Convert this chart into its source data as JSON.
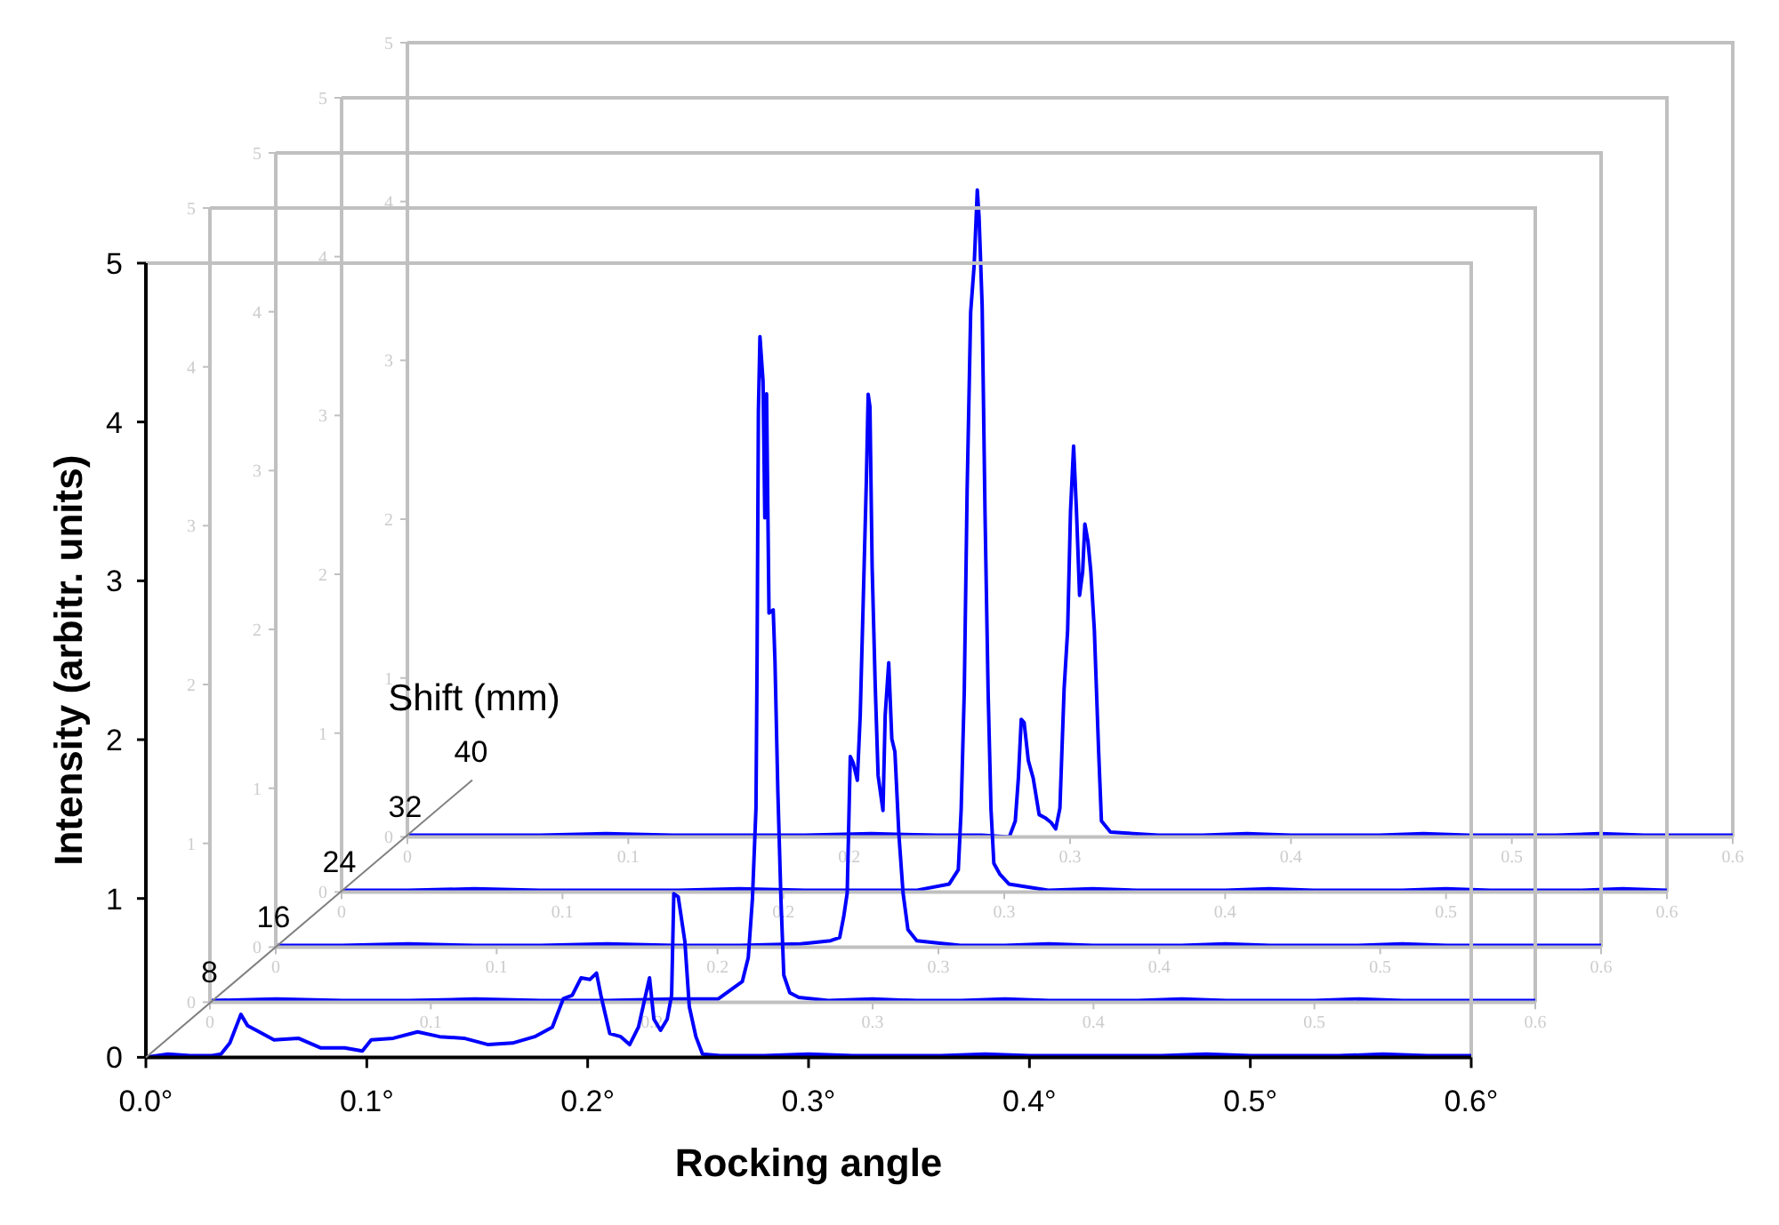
{
  "chart_data": [
    {
      "type": "line",
      "xlabel": "Rocking angle",
      "ylabel": "Intensity (arbitr. units)",
      "annotations": [
        "Shift (mm)"
      ],
      "xlim": [
        0,
        0.6
      ],
      "ylim": [
        0,
        5
      ],
      "xticks": [
        {
          "value": 0,
          "label": "0.0°"
        },
        {
          "value": 0.1,
          "label": "0.1°"
        },
        {
          "value": 0.2,
          "label": "0.2°"
        },
        {
          "value": 0.3,
          "label": "0.3°"
        },
        {
          "value": 0.4,
          "label": "0.4°"
        },
        {
          "value": 0.5,
          "label": "0.5°"
        },
        {
          "value": 0.6,
          "label": "0.6°"
        }
      ],
      "yticks": [
        0,
        1,
        2,
        3,
        4,
        5
      ],
      "series": [
        {
          "name": "8",
          "color": "#0000ff",
          "x": [
            0,
            0.01,
            0.02,
            0.03,
            0.034,
            0.038,
            0.043,
            0.046,
            0.05,
            0.058,
            0.069,
            0.079,
            0.09,
            0.098,
            0.102,
            0.112,
            0.123,
            0.133,
            0.144,
            0.155,
            0.166,
            0.176,
            0.184,
            0.189,
            0.193,
            0.197,
            0.201,
            0.204,
            0.206,
            0.21,
            0.215,
            0.219,
            0.223,
            0.228,
            0.23,
            0.233,
            0.236,
            0.238,
            0.239,
            0.241,
            0.244,
            0.246,
            0.249,
            0.252,
            0.26,
            0.28,
            0.3,
            0.32,
            0.34,
            0.36,
            0.38,
            0.4,
            0.42,
            0.44,
            0.46,
            0.48,
            0.5,
            0.52,
            0.54,
            0.56,
            0.58,
            0.6
          ],
          "values": [
            0,
            0.02,
            0.01,
            0.01,
            0.02,
            0.09,
            0.27,
            0.2,
            0.17,
            0.11,
            0.12,
            0.06,
            0.06,
            0.04,
            0.11,
            0.12,
            0.16,
            0.13,
            0.12,
            0.08,
            0.09,
            0.13,
            0.19,
            0.37,
            0.39,
            0.5,
            0.49,
            0.53,
            0.39,
            0.15,
            0.13,
            0.08,
            0.19,
            0.5,
            0.24,
            0.17,
            0.24,
            0.39,
            1.03,
            1.01,
            0.73,
            0.32,
            0.13,
            0.02,
            0.01,
            0.01,
            0.02,
            0.01,
            0.01,
            0.01,
            0.02,
            0.01,
            0.01,
            0.01,
            0.01,
            0.02,
            0.01,
            0.01,
            0.01,
            0.02,
            0.01,
            0.01
          ]
        }
      ]
    },
    {
      "type": "line",
      "xlim": [
        0,
        0.6
      ],
      "ylim": [
        0,
        5
      ],
      "xticks": [
        0,
        0.1,
        0.2,
        0.3,
        0.4,
        0.5,
        0.6
      ],
      "yticks": [
        0,
        1,
        2,
        3,
        4,
        5
      ],
      "series": [
        {
          "name": "16",
          "color": "#0000ff",
          "x": [
            0,
            0.03,
            0.06,
            0.09,
            0.12,
            0.15,
            0.18,
            0.21,
            0.23,
            0.241,
            0.2437,
            0.2456,
            0.2472,
            0.2477,
            0.2483,
            0.249,
            0.2504,
            0.2512,
            0.252,
            0.2531,
            0.255,
            0.2558,
            0.2571,
            0.2585,
            0.2598,
            0.2625,
            0.2666,
            0.28,
            0.3,
            0.32,
            0.34,
            0.36,
            0.38,
            0.4,
            0.42,
            0.44,
            0.46,
            0.48,
            0.5,
            0.52,
            0.54,
            0.56,
            0.58,
            0.6
          ],
          "values": [
            0.01,
            0.02,
            0.01,
            0.01,
            0.02,
            0.01,
            0.01,
            0.02,
            0.02,
            0.13,
            0.28,
            0.65,
            1.22,
            2.15,
            3.72,
            4.19,
            3.91,
            3.05,
            3.83,
            2.45,
            2.47,
            2.15,
            1.33,
            0.65,
            0.17,
            0.06,
            0.03,
            0.01,
            0.02,
            0.01,
            0.01,
            0.02,
            0.01,
            0.01,
            0.01,
            0.02,
            0.01,
            0.01,
            0.01,
            0.02,
            0.01,
            0.01,
            0.01,
            0.01
          ]
        }
      ]
    },
    {
      "type": "line",
      "xlim": [
        0,
        0.6
      ],
      "ylim": [
        0,
        5
      ],
      "xticks": [
        0,
        0.1,
        0.2,
        0.3,
        0.4,
        0.5,
        0.6
      ],
      "yticks": [
        0,
        1,
        2,
        3,
        4,
        5
      ],
      "series": [
        {
          "name": "24",
          "color": "#0000ff",
          "x": [
            0,
            0.03,
            0.06,
            0.09,
            0.12,
            0.15,
            0.18,
            0.21,
            0.2377,
            0.2512,
            0.2553,
            0.2571,
            0.2587,
            0.2593,
            0.2601,
            0.2614,
            0.2633,
            0.2646,
            0.266,
            0.2674,
            0.2682,
            0.269,
            0.27,
            0.2714,
            0.2727,
            0.2749,
            0.2759,
            0.2775,
            0.2789,
            0.2803,
            0.2821,
            0.284,
            0.2862,
            0.2902,
            0.31,
            0.33,
            0.35,
            0.37,
            0.39,
            0.41,
            0.43,
            0.45,
            0.47,
            0.49,
            0.51,
            0.53,
            0.55,
            0.57,
            0.6
          ],
          "values": [
            0.01,
            0.01,
            0.02,
            0.01,
            0.01,
            0.02,
            0.01,
            0.01,
            0.02,
            0.04,
            0.06,
            0.19,
            0.34,
            0.71,
            1.2,
            1.16,
            1.05,
            1.46,
            2.2,
            2.95,
            3.48,
            3.4,
            2.39,
            1.64,
            1.08,
            0.86,
            1.46,
            1.79,
            1.31,
            1.23,
            0.71,
            0.34,
            0.11,
            0.04,
            0.01,
            0.01,
            0.02,
            0.01,
            0.01,
            0.01,
            0.02,
            0.01,
            0.01,
            0.01,
            0.02,
            0.01,
            0.01,
            0.01,
            0.01
          ]
        }
      ]
    },
    {
      "type": "line",
      "xlim": [
        0,
        0.6
      ],
      "ylim": [
        0,
        5
      ],
      "xticks": [
        0,
        0.1,
        0.2,
        0.3,
        0.4,
        0.5,
        0.6
      ],
      "yticks": [
        0,
        1,
        2,
        3,
        4,
        5
      ],
      "series": [
        {
          "name": "32",
          "color": "#0000ff",
          "x": [
            0,
            0.03,
            0.06,
            0.09,
            0.12,
            0.15,
            0.18,
            0.21,
            0.24,
            0.26,
            0.2751,
            0.2792,
            0.2805,
            0.2819,
            0.2832,
            0.2848,
            0.2864,
            0.2878,
            0.2886,
            0.29,
            0.2913,
            0.2927,
            0.294,
            0.2953,
            0.2981,
            0.3021,
            0.32,
            0.34,
            0.36,
            0.38,
            0.4,
            0.42,
            0.44,
            0.46,
            0.48,
            0.5,
            0.52,
            0.54,
            0.56,
            0.58,
            0.6
          ],
          "values": [
            0.01,
            0.01,
            0.02,
            0.01,
            0.01,
            0.01,
            0.02,
            0.01,
            0.01,
            0.01,
            0.05,
            0.14,
            0.52,
            1.26,
            2.53,
            3.65,
            3.95,
            4.42,
            4.25,
            3.69,
            2.38,
            1.26,
            0.52,
            0.18,
            0.11,
            0.05,
            0.01,
            0.02,
            0.01,
            0.01,
            0.01,
            0.02,
            0.01,
            0.01,
            0.01,
            0.02,
            0.01,
            0.01,
            0.01,
            0.02,
            0.01
          ]
        }
      ]
    },
    {
      "type": "line",
      "xlim": [
        0,
        0.6
      ],
      "ylim": [
        0,
        5
      ],
      "xticks": [
        0,
        0.1,
        0.2,
        0.3,
        0.4,
        0.5,
        0.6
      ],
      "yticks": [
        0,
        1,
        2,
        3,
        4,
        5
      ],
      "series": [
        {
          "name": "40",
          "color": "#0000ff",
          "x": [
            0,
            0.03,
            0.06,
            0.09,
            0.12,
            0.15,
            0.18,
            0.21,
            0.24,
            0.26,
            0.2725,
            0.2752,
            0.2766,
            0.2779,
            0.2792,
            0.2811,
            0.2833,
            0.286,
            0.2887,
            0.2914,
            0.2935,
            0.2954,
            0.2973,
            0.2989,
            0.3002,
            0.3016,
            0.3029,
            0.3043,
            0.3057,
            0.3067,
            0.3081,
            0.3094,
            0.311,
            0.3129,
            0.3142,
            0.3183,
            0.34,
            0.36,
            0.38,
            0.4,
            0.42,
            0.44,
            0.46,
            0.48,
            0.5,
            0.52,
            0.54,
            0.56,
            0.58,
            0.6
          ],
          "values": [
            0.01,
            0.01,
            0.01,
            0.02,
            0.01,
            0.01,
            0.01,
            0.02,
            0.01,
            0.01,
            0,
            0.1,
            0.37,
            0.74,
            0.72,
            0.48,
            0.37,
            0.14,
            0.12,
            0.09,
            0.05,
            0.18,
            0.93,
            1.3,
            2.05,
            2.46,
            2.05,
            1.52,
            1.67,
            1.97,
            1.86,
            1.67,
            1.3,
            0.55,
            0.1,
            0.03,
            0.01,
            0.01,
            0.02,
            0.01,
            0.01,
            0.01,
            0.02,
            0.01,
            0.01,
            0.01,
            0.02,
            0.01,
            0.01,
            0.01
          ]
        }
      ]
    }
  ]
}
